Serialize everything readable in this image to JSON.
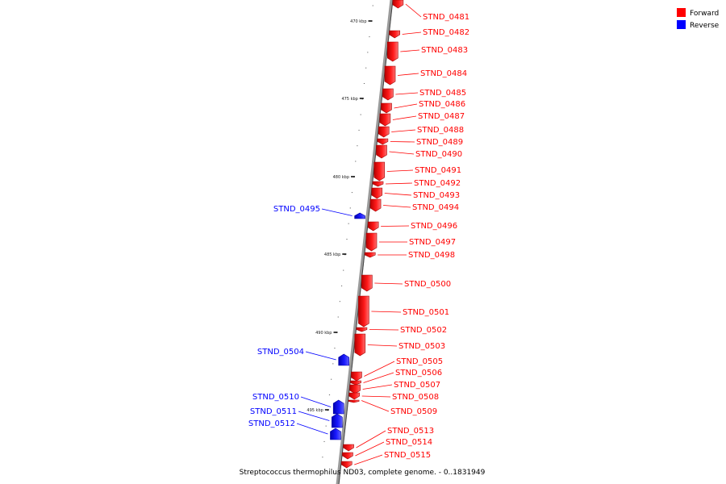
{
  "legend": {
    "forward_label": "Forward",
    "reverse_label": "Reverse",
    "forward_color": "#ff0000",
    "reverse_color": "#0000ff"
  },
  "caption": "Streptococcus thermophilus ND03, complete genome. - 0..1831949",
  "ticks": [
    "470 kbp",
    "475 kbp",
    "480 kbp",
    "485 kbp",
    "490 kbp",
    "495 kbp"
  ],
  "genes": [
    {
      "name": "STND_0481",
      "strand": "forward"
    },
    {
      "name": "STND_0482",
      "strand": "forward"
    },
    {
      "name": "STND_0483",
      "strand": "forward"
    },
    {
      "name": "STND_0484",
      "strand": "forward"
    },
    {
      "name": "STND_0485",
      "strand": "forward"
    },
    {
      "name": "STND_0486",
      "strand": "forward"
    },
    {
      "name": "STND_0487",
      "strand": "forward"
    },
    {
      "name": "STND_0488",
      "strand": "forward"
    },
    {
      "name": "STND_0489",
      "strand": "forward"
    },
    {
      "name": "STND_0490",
      "strand": "forward"
    },
    {
      "name": "STND_0491",
      "strand": "forward"
    },
    {
      "name": "STND_0492",
      "strand": "forward"
    },
    {
      "name": "STND_0493",
      "strand": "forward"
    },
    {
      "name": "STND_0494",
      "strand": "forward"
    },
    {
      "name": "STND_0495",
      "strand": "reverse"
    },
    {
      "name": "STND_0496",
      "strand": "forward"
    },
    {
      "name": "STND_0497",
      "strand": "forward"
    },
    {
      "name": "STND_0498",
      "strand": "forward"
    },
    {
      "name": "STND_0500",
      "strand": "forward"
    },
    {
      "name": "STND_0501",
      "strand": "forward"
    },
    {
      "name": "STND_0502",
      "strand": "forward"
    },
    {
      "name": "STND_0503",
      "strand": "forward"
    },
    {
      "name": "STND_0504",
      "strand": "reverse"
    },
    {
      "name": "STND_0505",
      "strand": "forward"
    },
    {
      "name": "STND_0506",
      "strand": "forward"
    },
    {
      "name": "STND_0507",
      "strand": "forward"
    },
    {
      "name": "STND_0508",
      "strand": "forward"
    },
    {
      "name": "STND_0509",
      "strand": "forward"
    },
    {
      "name": "STND_0510",
      "strand": "reverse"
    },
    {
      "name": "STND_0511",
      "strand": "reverse"
    },
    {
      "name": "STND_0512",
      "strand": "reverse"
    },
    {
      "name": "STND_0513",
      "strand": "forward"
    },
    {
      "name": "STND_0514",
      "strand": "forward"
    },
    {
      "name": "STND_0515",
      "strand": "forward"
    }
  ]
}
